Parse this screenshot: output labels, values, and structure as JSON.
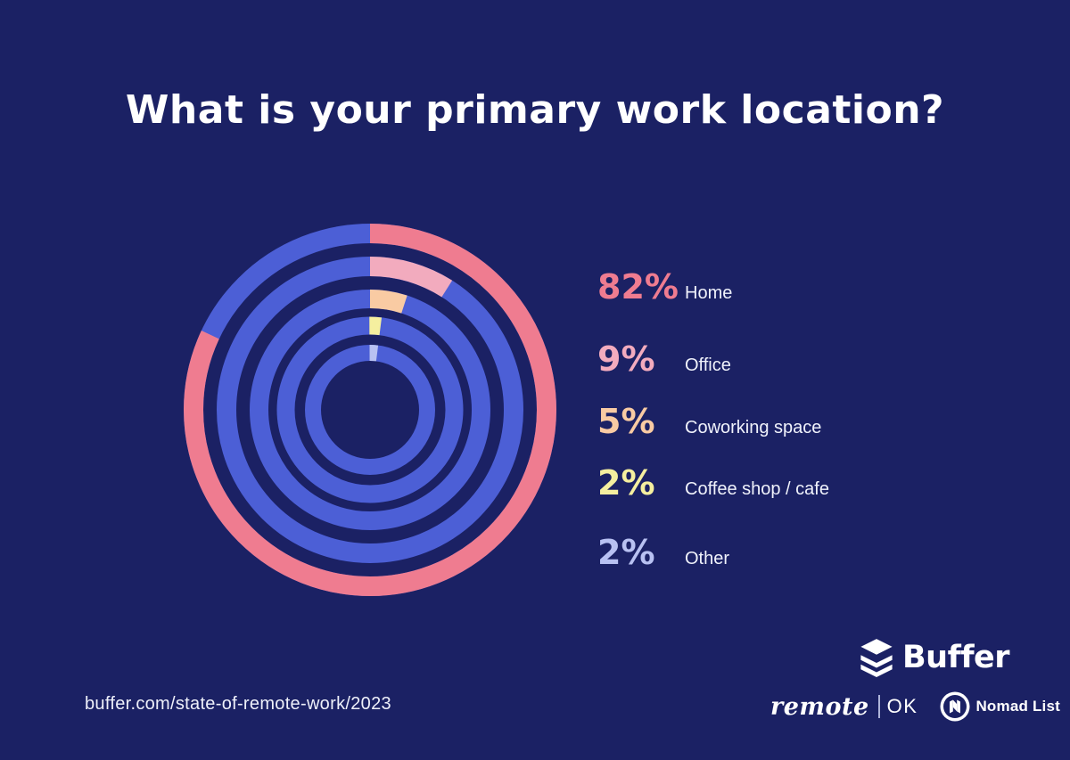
{
  "title": "What is your primary work location?",
  "chart_data": {
    "type": "pie",
    "variant": "concentric-donut-rings",
    "title": "What is your primary work location?",
    "categories": [
      "Home",
      "Office",
      "Coworking space",
      "Coffee shop / cafe",
      "Other"
    ],
    "values": [
      82,
      9,
      5,
      2,
      2
    ],
    "unit": "%",
    "legend_position": "right",
    "ring_base_color": "#4c5fd6",
    "background_color": "#1b2164",
    "series_colors": [
      "#ef7c90",
      "#f2abbe",
      "#f9cba3",
      "#f5ef9f",
      "#b8c1f2"
    ],
    "items": [
      {
        "label": "Home",
        "value": 82,
        "pct_label": "82%",
        "color": "#ef7c90"
      },
      {
        "label": "Office",
        "value": 9,
        "pct_label": "9%",
        "color": "#f2abbe"
      },
      {
        "label": "Coworking space",
        "value": 5,
        "pct_label": "5%",
        "color": "#f9cba3"
      },
      {
        "label": "Coffee shop / cafe",
        "value": 2,
        "pct_label": "2%",
        "color": "#f5ef9f"
      },
      {
        "label": "Other",
        "value": 2,
        "pct_label": "2%",
        "color": "#b8c1f2"
      }
    ]
  },
  "footer": {
    "url": "buffer.com/state-of-remote-work/2023"
  },
  "branding": {
    "buffer_wordmark": "Buffer",
    "remote_wordmark": "remote",
    "remote_ok": "OK",
    "nomad_label": "Nomad List"
  }
}
